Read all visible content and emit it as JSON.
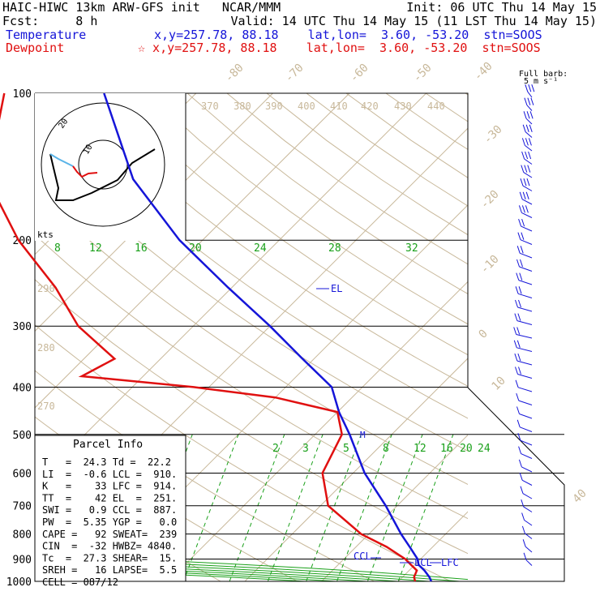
{
  "header": {
    "line1_left": "HAIC-HIWC 13km ARW-GFS init   NCAR/MMM",
    "line1_right": "Init: 06 UTC Thu 14 May 15",
    "line2_left": "Fcst:     8 h",
    "line2_right": "Valid: 14 UTC Thu 14 May 15 (11 LST Thu 14 May 15)",
    "temp_label": "Temperature",
    "temp_info": "x,y=257.78, 88.18    lat,lon=  3.60, -53.20  stn=SOOS",
    "dew_label": "Dewpoint",
    "dew_info": "☆ x,y=257.78, 88.18    lat,lon=  3.60, -53.20  stn=SOOS"
  },
  "barb_legend": {
    "line1": "Full barb:",
    "line2": "5 m s⁻¹"
  },
  "hodograph": {
    "units": "kts",
    "ring_labels": [
      "10",
      "20"
    ]
  },
  "parcel": {
    "title": "Parcel Info",
    "rows": [
      "T   =  24.3 Td =  22.2",
      "LI  =  -0.6 LCL =  910.",
      "K   =    33 LFC =  914.",
      "TT  =    42 EL  =  251.",
      "SWI =   0.9 CCL =  887.",
      "PW  =  5.35 YGP =   0.0",
      "CAPE =   92 SWEAT=  239",
      "CIN  =  -32 HWBZ= 4840.",
      "Tc  =  27.3 SHEAR=  15.",
      "SREH =   16 LAPSE=  5.5",
      "CELL = 087/12"
    ]
  },
  "colors": {
    "temperature": "#1515d8",
    "dewpoint": "#e01010",
    "isotherm": "#c8b89a",
    "moist_adiabat": "#1aa01a",
    "barb": "#1515d8",
    "hodo_temp": "#000000",
    "hodo_dew": "#e01010",
    "hodo_low": "#5ab4e8"
  },
  "chart_data": {
    "type": "line",
    "pressure_levels_hpa": [
      100,
      200,
      300,
      400,
      500,
      600,
      700,
      800,
      900,
      1000
    ],
    "isotherm_labels": [
      "-80",
      "-70",
      "-60",
      "-50",
      "-40",
      "-30",
      "-20",
      "-10",
      "0",
      "10",
      "40"
    ],
    "theta_labels": [
      "370",
      "380",
      "390",
      "400",
      "410",
      "420",
      "430",
      "440",
      "290",
      "280",
      "270"
    ],
    "moist_adiabat_labels_upper": [
      "8",
      "12",
      "16",
      "20",
      "24",
      "28",
      "32"
    ],
    "mixing_ratio_labels": [
      "2",
      "3",
      "5",
      "8",
      "12",
      "16",
      "20",
      "24"
    ],
    "annotations": {
      "el": "EL",
      "lcl": "LCL",
      "lfc": "LFC",
      "ccl": "CCL",
      "m": "M"
    },
    "series": [
      {
        "name": "Temperature",
        "pressure": [
          1000,
          980,
          950,
          925,
          900,
          850,
          800,
          700,
          600,
          500,
          450,
          400,
          350,
          300,
          250,
          200,
          150,
          100
        ],
        "temperature_c": [
          24.3,
          23.5,
          22.0,
          20.5,
          19.6,
          17.0,
          14.2,
          8.5,
          1.5,
          -5.5,
          -9.8,
          -14.0,
          -21.5,
          -30.0,
          -40.5,
          -53.0,
          -67.0,
          -82.0
        ]
      },
      {
        "name": "Dewpoint",
        "pressure": [
          1000,
          980,
          950,
          925,
          900,
          850,
          800,
          700,
          600,
          500,
          450,
          420,
          400,
          380,
          350,
          300,
          250,
          200,
          150,
          100
        ],
        "dewpoint_c": [
          22.2,
          21.5,
          21.0,
          19.5,
          18.0,
          14.0,
          9.0,
          1.0,
          -4.0,
          -6.5,
          -10.0,
          -20.0,
          -32.0,
          -48.0,
          -46.0,
          -55.0,
          -63.0,
          -74.0,
          -86.0,
          -95.0
        ]
      }
    ]
  }
}
